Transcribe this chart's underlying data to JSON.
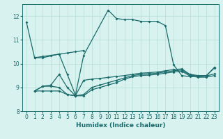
{
  "title": "",
  "xlabel": "Humidex (Indice chaleur)",
  "bg_color": "#d8f2ef",
  "grid_color": "#b8ddd8",
  "line_color": "#1a6b6b",
  "xlim": [
    -0.5,
    23.5
  ],
  "ylim": [
    8,
    12.5
  ],
  "yticks": [
    8,
    9,
    10,
    11,
    12
  ],
  "xticks": [
    0,
    1,
    2,
    3,
    4,
    5,
    6,
    7,
    8,
    9,
    10,
    11,
    12,
    13,
    14,
    15,
    16,
    17,
    18,
    19,
    20,
    21,
    22,
    23
  ],
  "curve_main_x": [
    0,
    1,
    2,
    4,
    5,
    6,
    7,
    10,
    11,
    12,
    13,
    14,
    15,
    16,
    17,
    18,
    19,
    20,
    21,
    22,
    23
  ],
  "curve_main_y": [
    11.75,
    10.25,
    10.25,
    10.4,
    9.55,
    8.68,
    10.35,
    12.25,
    11.9,
    11.85,
    11.85,
    11.78,
    11.78,
    11.78,
    11.6,
    9.95,
    9.5,
    9.45,
    9.45,
    9.48,
    9.85
  ],
  "curve2_x": [
    1,
    2,
    3,
    4,
    5,
    6,
    7
  ],
  "curve2_y": [
    10.25,
    10.3,
    10.35,
    10.4,
    10.45,
    10.5,
    10.55
  ],
  "curve3_x": [
    1,
    2,
    3,
    4,
    5,
    6,
    7,
    8,
    9,
    10,
    11,
    12,
    13,
    14,
    15,
    16,
    17,
    18,
    19,
    20,
    21,
    22,
    23
  ],
  "curve3_y": [
    8.85,
    9.05,
    9.1,
    9.55,
    9.0,
    8.65,
    9.3,
    9.35,
    9.38,
    9.42,
    9.46,
    9.5,
    9.55,
    9.6,
    9.62,
    9.65,
    9.7,
    9.75,
    9.78,
    9.55,
    9.5,
    9.5,
    9.82
  ],
  "curve4_x": [
    1,
    2,
    3,
    4,
    5,
    6,
    7,
    8,
    9,
    10,
    11,
    12,
    13,
    14,
    15,
    16,
    17,
    18,
    19,
    20,
    21,
    22,
    23
  ],
  "curve4_y": [
    8.85,
    9.05,
    9.05,
    9.0,
    8.7,
    8.65,
    8.7,
    9.0,
    9.1,
    9.2,
    9.3,
    9.4,
    9.5,
    9.55,
    9.57,
    9.6,
    9.65,
    9.7,
    9.73,
    9.52,
    9.48,
    9.48,
    9.57
  ],
  "curve5_x": [
    1,
    2,
    3,
    4,
    5,
    6,
    7,
    8,
    9,
    10,
    11,
    12,
    13,
    14,
    15,
    16,
    17,
    18,
    19,
    20,
    21,
    22,
    23
  ],
  "curve5_y": [
    8.85,
    8.85,
    8.85,
    8.85,
    8.7,
    8.65,
    8.65,
    8.9,
    9.0,
    9.1,
    9.2,
    9.35,
    9.45,
    9.5,
    9.52,
    9.55,
    9.6,
    9.65,
    9.68,
    9.48,
    9.43,
    9.43,
    9.5
  ]
}
